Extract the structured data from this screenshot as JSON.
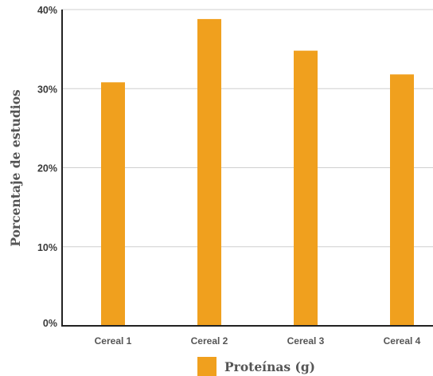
{
  "chart_data": {
    "type": "bar",
    "categories": [
      "Cereal 1",
      "Cereal 2",
      "Cereal 3",
      "Cereal 4"
    ],
    "series": [
      {
        "name": "Proteínas (g)",
        "values": [
          30.8,
          38.8,
          34.8,
          31.8
        ],
        "color": "#f0a01e"
      }
    ],
    "ylabel": "Porcentaje de estudios",
    "xlabel": "",
    "ylim": [
      0,
      40
    ],
    "yticks": [
      "0%",
      "10%",
      "20%",
      "30%",
      "40%"
    ],
    "grid": true,
    "legend_position": "bottom"
  }
}
